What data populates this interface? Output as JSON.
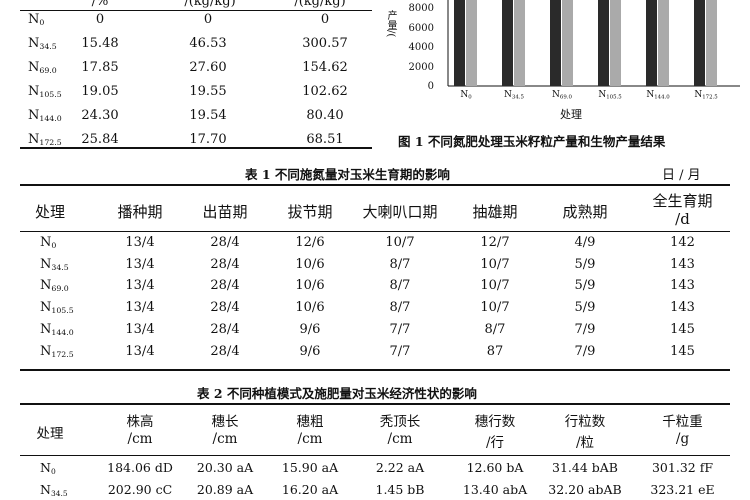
{
  "top_table": {
    "header_units": [
      "/%",
      "/(kg/kg)",
      "/(kg/kg)"
    ],
    "rows": [
      {
        "t": "N",
        "s": "0",
        "v": [
          "0",
          "0",
          "0"
        ]
      },
      {
        "t": "N",
        "s": "34.5",
        "v": [
          "15.48",
          "46.53",
          "300.57"
        ]
      },
      {
        "t": "N",
        "s": "69.0",
        "v": [
          "17.85",
          "27.60",
          "154.62"
        ]
      },
      {
        "t": "N",
        "s": "105.5",
        "v": [
          "19.05",
          "19.55",
          "102.62"
        ]
      },
      {
        "t": "N",
        "s": "144.0",
        "v": [
          "24.30",
          "19.54",
          "80.40"
        ]
      },
      {
        "t": "N",
        "s": "172.5",
        "v": [
          "25.84",
          "17.70",
          "68.51"
        ]
      }
    ]
  },
  "figure": {
    "ylabel": "产量/(",
    "xlabel": "处理",
    "y_ticks": [
      "8000",
      "6000",
      "4000",
      "2000",
      "0"
    ],
    "categories": [
      {
        "t": "N",
        "s": "0"
      },
      {
        "t": "N",
        "s": "34.5"
      },
      {
        "t": "N",
        "s": "69.0"
      },
      {
        "t": "N",
        "s": "105.5"
      },
      {
        "t": "N",
        "s": "144.0"
      },
      {
        "t": "N",
        "s": "172.5"
      }
    ],
    "caption": "图 1   不同氮肥处理玉米籽粒产量和生物产量结果"
  },
  "chart_data": {
    "type": "bar",
    "categories": [
      "N0",
      "N34.5",
      "N69.0",
      "N105.5",
      "N144.0",
      "N172.5"
    ],
    "series": [
      {
        "values": [
          8800,
          9100,
          9100,
          9100,
          9100,
          9100
        ],
        "color": "#2a2a2a"
      },
      {
        "values": [
          9100,
          9100,
          9100,
          9100,
          9100,
          9100
        ],
        "color": "#aaaaaa"
      }
    ],
    "xlabel": "处理",
    "ylabel": "产量/(",
    "ylim": [
      0,
      9100
    ]
  },
  "table1": {
    "title": "表 1   不同施氮量对玉米生育期的影响",
    "unit_note": "日 / 月",
    "headers": [
      "处理",
      "播种期",
      "出苗期",
      "拔节期",
      "大喇叭口期",
      "抽雄期",
      "成熟期",
      "全生育期",
      "/d"
    ],
    "rows": [
      {
        "t": "N",
        "s": "0",
        "v": [
          "13/4",
          "28/4",
          "12/6",
          "10/7",
          "12/7",
          "4/9",
          "142"
        ]
      },
      {
        "t": "N",
        "s": "34.5",
        "v": [
          "13/4",
          "28/4",
          "10/6",
          "8/7",
          "10/7",
          "5/9",
          "143"
        ]
      },
      {
        "t": "N",
        "s": "69.0",
        "v": [
          "13/4",
          "28/4",
          "10/6",
          "8/7",
          "10/7",
          "5/9",
          "143"
        ]
      },
      {
        "t": "N",
        "s": "105.5",
        "v": [
          "13/4",
          "28/4",
          "10/6",
          "8/7",
          "10/7",
          "5/9",
          "143"
        ]
      },
      {
        "t": "N",
        "s": "144.0",
        "v": [
          "13/4",
          "28/4",
          "9/6",
          "7/7",
          "8/7",
          "7/9",
          "145"
        ]
      },
      {
        "t": "N",
        "s": "172.5",
        "v": [
          "13/4",
          "28/4",
          "9/6",
          "7/7",
          "87",
          "7/9",
          "145"
        ]
      }
    ]
  },
  "table2": {
    "title": "表 2   不同种植模式及施肥量对玉米经济性状的影响",
    "headers": [
      [
        "处理",
        ""
      ],
      [
        "株高",
        "/cm"
      ],
      [
        "穗长",
        "/cm"
      ],
      [
        "穗粗",
        "/cm"
      ],
      [
        "秃顶长",
        "/cm"
      ],
      [
        "穗行数",
        "/行"
      ],
      [
        "行粒数",
        "/粒"
      ],
      [
        "千粒重",
        "/g"
      ]
    ],
    "rows": [
      {
        "t": "N",
        "s": "0",
        "v": [
          "184.06 dD",
          "20.30 aA",
          "15.90 aA",
          "2.22 aA",
          "12.60 bA",
          "31.44 bAB",
          "301.32 fF"
        ]
      },
      {
        "t": "N",
        "s": "34.5",
        "v": [
          "202.90 cC",
          "20.89 aA",
          "16.20 aA",
          "1.45 bB",
          "13.40 abA",
          "32.20 abAB",
          "323.21 eE"
        ]
      }
    ]
  }
}
